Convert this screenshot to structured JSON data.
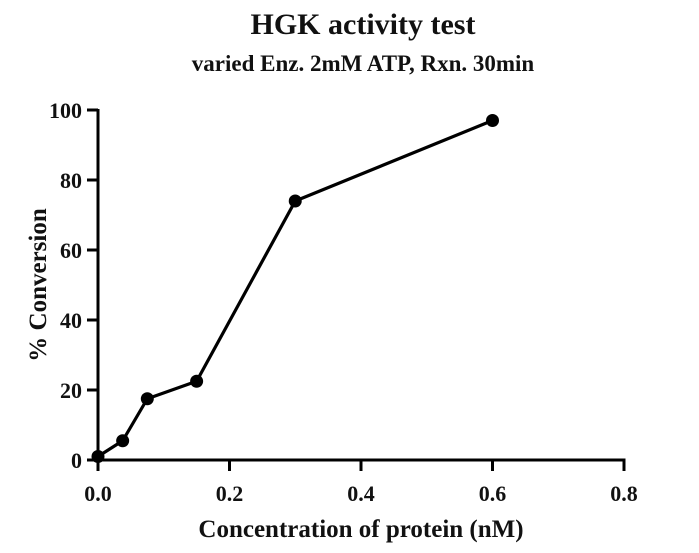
{
  "chart_data": {
    "type": "line",
    "title": "HGK activity test",
    "subtitle": "varied Enz. 2mM ATP, Rxn. 30min",
    "xlabel": "Concentration of protein (nM)",
    "ylabel": "% Conversion",
    "xlim": [
      0,
      0.8
    ],
    "ylim": [
      0,
      100
    ],
    "xticks": [
      "0.0",
      "0.2",
      "0.4",
      "0.6",
      "0.8"
    ],
    "yticks": [
      "0",
      "20",
      "40",
      "60",
      "80",
      "100"
    ],
    "grid": false,
    "legend": "none",
    "series": [
      {
        "x": [
          0.0,
          0.0375,
          0.075,
          0.15,
          0.3,
          0.6
        ],
        "y": [
          1,
          5.5,
          17.5,
          22.5,
          74,
          97
        ]
      }
    ],
    "colors": {
      "line": "#000000",
      "marker": "#000000"
    }
  }
}
